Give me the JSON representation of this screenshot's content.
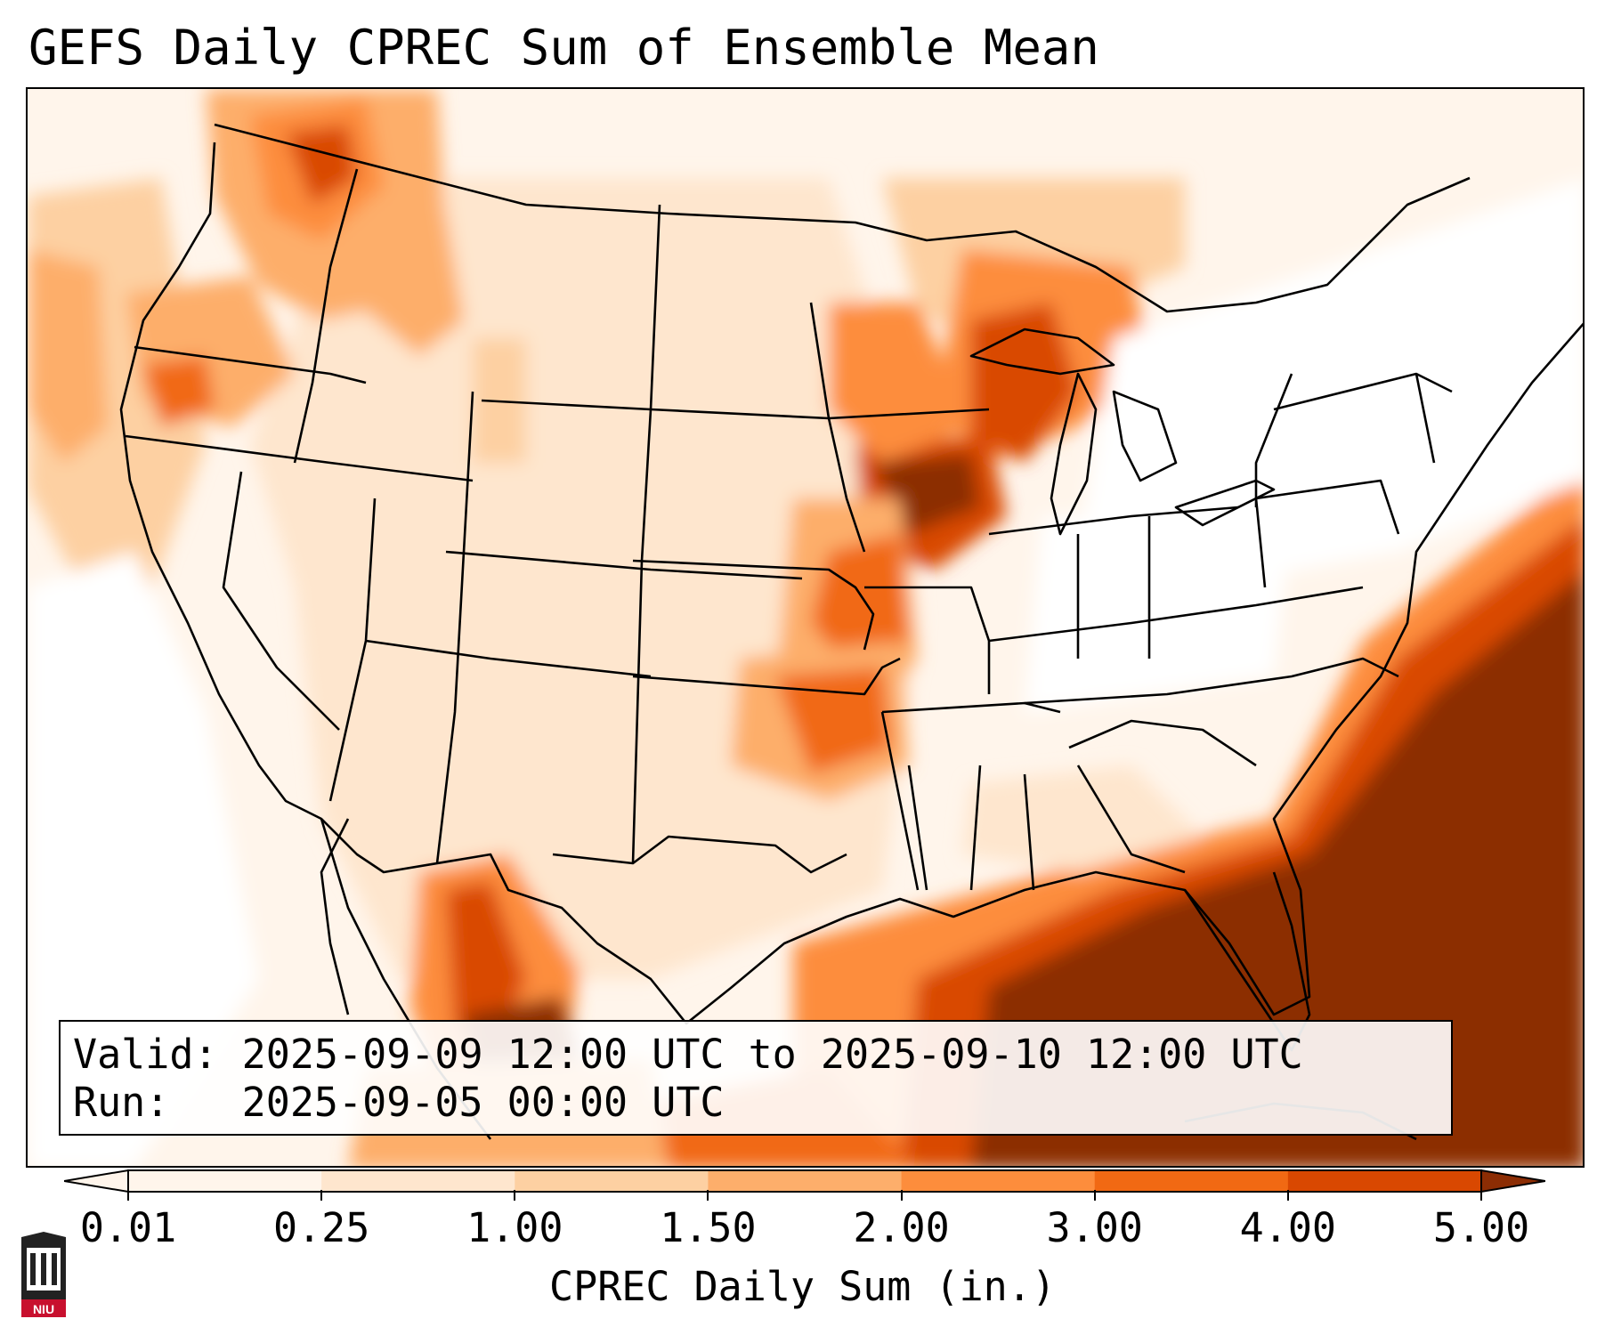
{
  "title": "GEFS Daily CPREC Sum of Ensemble Mean",
  "info": {
    "valid_label": "Valid:",
    "valid_value": "2025-09-09 12:00 UTC to 2025-09-10 12:00 UTC",
    "run_label": "Run:",
    "run_value": "2025-09-05 00:00 UTC"
  },
  "colorbar": {
    "label": "CPREC Daily Sum (in.)",
    "ticks": [
      "0.01",
      "0.25",
      "1.00",
      "1.50",
      "2.00",
      "3.00",
      "4.00",
      "5.00"
    ],
    "colors": [
      "#fff5eb",
      "#fee6ce",
      "#fdd0a2",
      "#fdae6b",
      "#fd8d3c",
      "#f16913",
      "#d94801",
      "#8c2d04"
    ]
  },
  "logo": {
    "text": "NIU"
  }
}
